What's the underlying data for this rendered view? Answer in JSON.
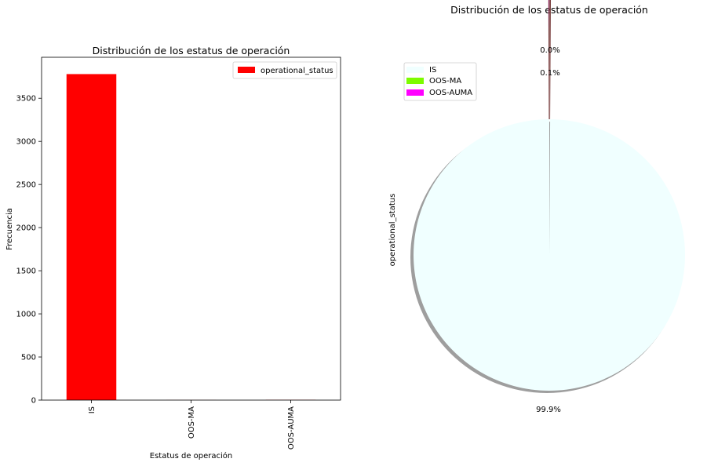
{
  "figure": {
    "suptitle": "Distribución de los estatus de operación"
  },
  "colors": {
    "bar": "#ff0000",
    "axes": "#000000",
    "pie_is": "#f0ffff",
    "pie_oos_ma": "#7cfc00",
    "pie_oos_auma": "#ff00ff",
    "shadow": "#999999"
  },
  "chart_data": [
    {
      "type": "bar",
      "title": "Distribución de los estatus de operación",
      "xlabel": "Estatus de operación",
      "ylabel": "Frecuencia",
      "categories": [
        "IS",
        "OOS-MA",
        "OOS-AUMA"
      ],
      "series": [
        {
          "name": "operational_status",
          "values": [
            3780,
            1,
            3
          ]
        }
      ],
      "ylim": [
        0,
        3975
      ],
      "yticks": [
        0,
        500,
        1000,
        1500,
        2000,
        2500,
        3000,
        3500
      ],
      "ytick_labels": [
        "0",
        "500",
        "1000",
        "1500",
        "2000",
        "2500",
        "3000",
        "3500"
      ],
      "grid": false,
      "legend": "upper-right"
    },
    {
      "type": "pie",
      "title": "",
      "ylabel": "operational_status",
      "labels": [
        "IS",
        "OOS-MA",
        "OOS-AUMA"
      ],
      "values": [
        99.9,
        0.0,
        0.1
      ],
      "pct_labels": [
        "99.9%",
        "0.0%",
        "0.1%"
      ],
      "legend": "upper-left",
      "shadow": true
    }
  ]
}
